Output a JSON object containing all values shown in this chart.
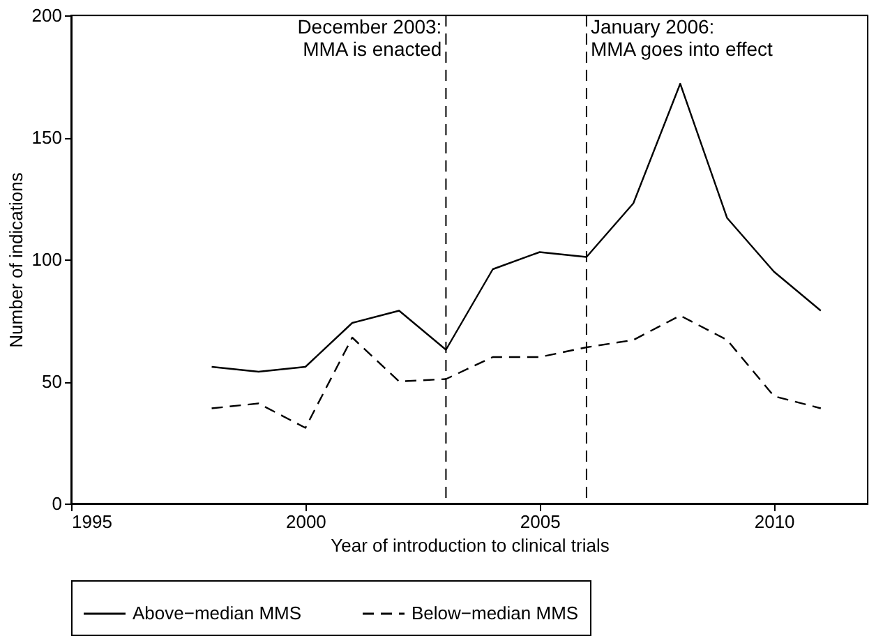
{
  "chart_data": {
    "type": "line",
    "xlabel": "Year of introduction to clinical trials",
    "ylabel": "Number of indications",
    "x": [
      1998,
      1999,
      2000,
      2001,
      2002,
      2003,
      2004,
      2005,
      2006,
      2007,
      2008,
      2009,
      2010,
      2011
    ],
    "series": [
      {
        "name": "Above−median MMS",
        "color": "#000000",
        "line_style": "solid",
        "values": [
          56,
          54,
          56,
          74,
          79,
          63,
          96,
          103,
          101,
          123,
          172,
          117,
          95,
          79
        ]
      },
      {
        "name": "Below−median MMS",
        "color": "#000000",
        "line_style": "dashed",
        "values": [
          39,
          41,
          31,
          68,
          50,
          51,
          60,
          60,
          64,
          67,
          77,
          67,
          44,
          39
        ]
      }
    ],
    "xlim": [
      1995,
      2012
    ],
    "xticks": [
      1995,
      2000,
      2005,
      2010
    ],
    "ylim": [
      0,
      200
    ],
    "yticks": [
      0,
      50,
      100,
      150,
      200
    ],
    "ref_lines": [
      {
        "axis": "x",
        "value": 2003,
        "label": "December 2003:\nMMA is enacted",
        "line_style": "dashed"
      },
      {
        "axis": "x",
        "value": 2006,
        "label": "January 2006:\nMMA goes into effect",
        "line_style": "dashed"
      }
    ],
    "grid": false,
    "legend": "bottom",
    "marker": "none"
  }
}
